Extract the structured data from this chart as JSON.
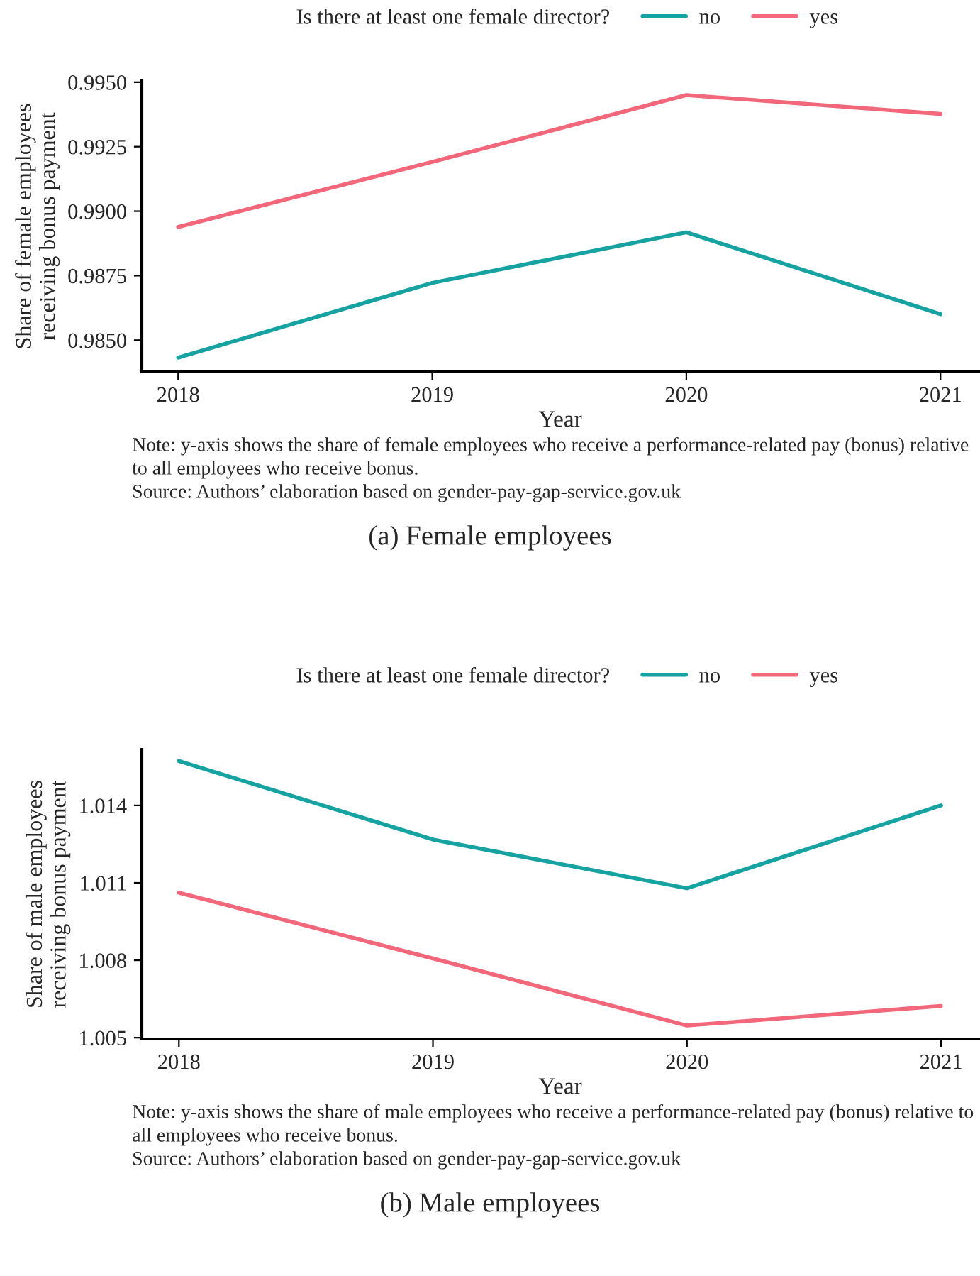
{
  "chart_data": [
    {
      "type": "line",
      "title": "(a) Female employees",
      "xlabel": "Year",
      "ylabel": "Share of female employees\nreceiving bonus payment",
      "legend_title": "Is there at least one female director?",
      "legend": "top",
      "grid": false,
      "marker": "none",
      "line_style": "solid",
      "x": [
        2018,
        2019,
        2020,
        2021
      ],
      "xlim": [
        2017.857,
        2021.15
      ],
      "xticks": [
        2018,
        2019,
        2020,
        2021
      ],
      "ylim": [
        0.98377,
        0.99505
      ],
      "yticks": [
        {
          "value": 0.985,
          "label": "0.9850"
        },
        {
          "value": 0.9875,
          "label": "0.9875"
        },
        {
          "value": 0.99,
          "label": "0.9900"
        },
        {
          "value": 0.9925,
          "label": "0.9925"
        },
        {
          "value": 0.995,
          "label": "0.9950"
        }
      ],
      "series": [
        {
          "name": "no",
          "color": "#17a2a2",
          "values": [
            0.98432,
            0.98722,
            0.98918,
            0.98601
          ]
        },
        {
          "name": "yes",
          "color": "#f2677a",
          "values": [
            0.98939,
            0.99191,
            0.9945,
            0.99377
          ]
        }
      ],
      "annotations": [
        "Note: y-axis shows the share of female employees who receive a performance-related pay (bonus) relative to all employees who receive bonus.\nSource: Authors’ elaboration based on gender-pay-gap-service.gov.uk"
      ]
    },
    {
      "type": "line",
      "title": "(b) Male employees",
      "xlabel": "Year",
      "ylabel": "Share of male employees\nreceiving bonus payment",
      "legend_title": "Is there at least one female director?",
      "legend": "top",
      "grid": false,
      "marker": "none",
      "line_style": "solid",
      "x": [
        2018,
        2019,
        2020,
        2021
      ],
      "xlim": [
        2017.854,
        2021.148
      ],
      "xticks": [
        2018,
        2019,
        2020,
        2021
      ],
      "ylim": [
        1.00495,
        1.01617
      ],
      "yticks": [
        1.005,
        1.008,
        1.011,
        1.014
      ],
      "series": [
        {
          "name": "no",
          "color": "#17a2a2",
          "values": [
            1.01572,
            1.01268,
            1.01079,
            1.014
          ]
        },
        {
          "name": "yes",
          "color": "#f2677a",
          "values": [
            1.01062,
            1.00807,
            1.00547,
            1.00623
          ]
        }
      ],
      "annotations": [
        "Note: y-axis shows the share of male employees who receive a performance-related pay (bonus) relative to all employees who receive bonus.\nSource: Authors’ elaboration based on gender-pay-gap-service.gov.uk"
      ]
    }
  ]
}
